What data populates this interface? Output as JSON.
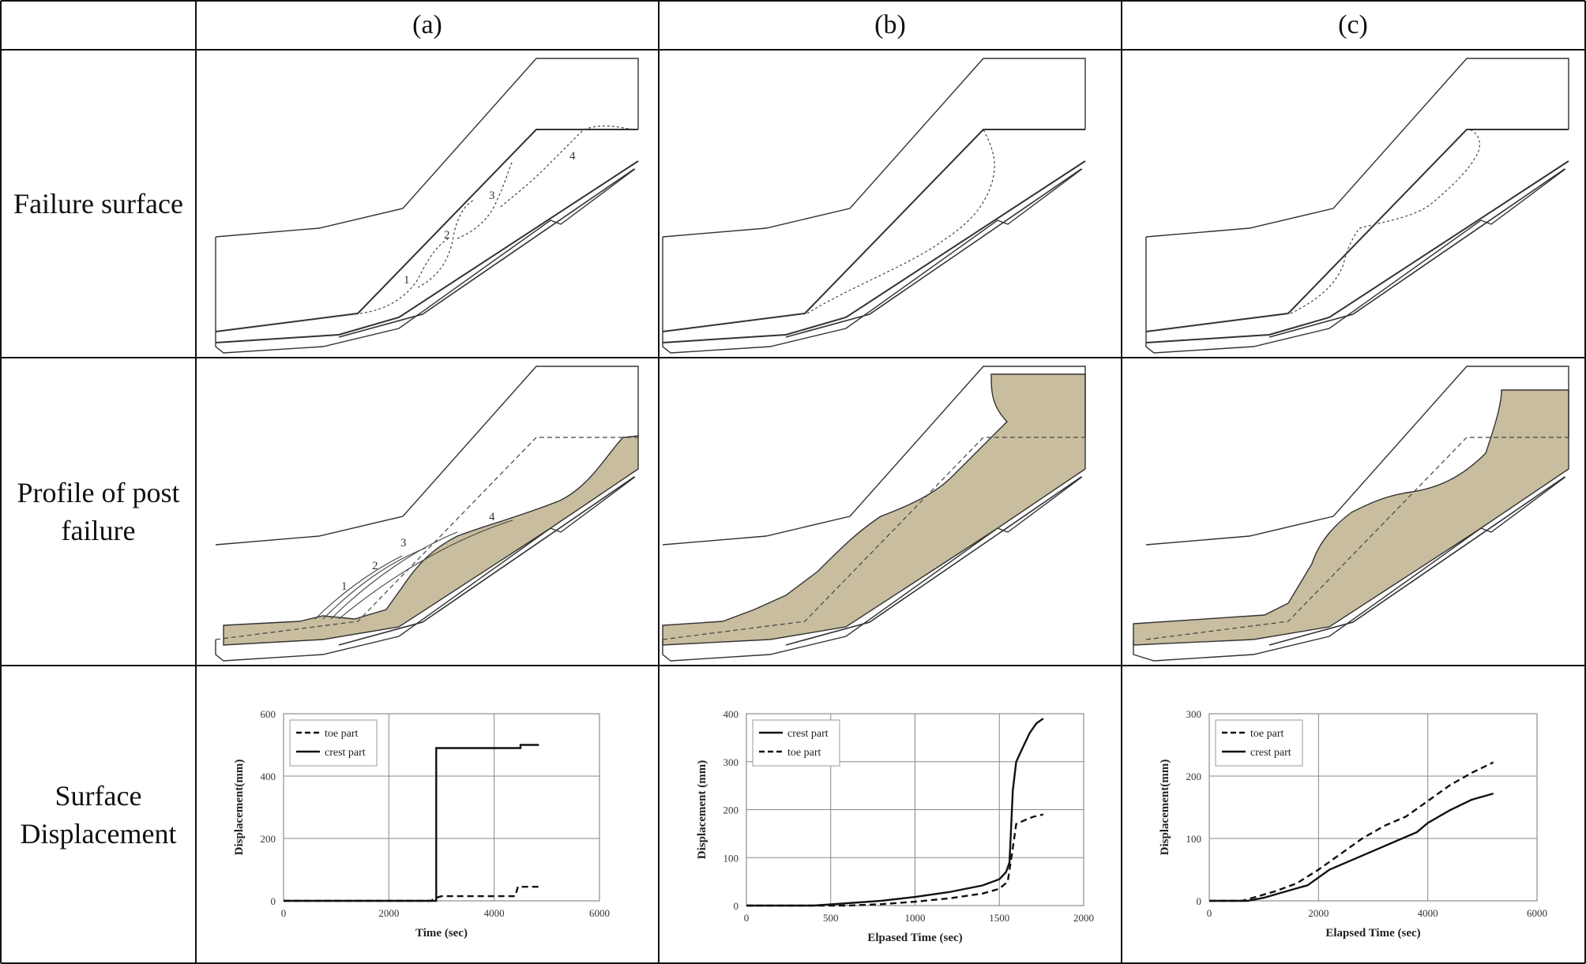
{
  "columns": [
    "(a)",
    "(b)",
    "(c)"
  ],
  "rows": {
    "failure": "Failure surface",
    "post": [
      "Profile of post",
      "failure"
    ],
    "disp": [
      "Surface",
      "Displacement"
    ]
  },
  "slice_labels": [
    "1",
    "2",
    "3",
    "4"
  ],
  "colors": {
    "soil_fill": "#c8bd9e",
    "line": "#222222",
    "grid": "#888888"
  },
  "chart_data": [
    {
      "type": "line",
      "xlabel": "Time (sec)",
      "ylabel": "Displacement(mm)",
      "xlim": [
        0,
        6000
      ],
      "ylim": [
        0,
        600
      ],
      "xticks": [
        "0",
        "2000",
        "4000",
        "6000"
      ],
      "yticks": [
        "0",
        "200",
        "400",
        "600"
      ],
      "legend_position": "top-left",
      "series": [
        {
          "name": "toe part",
          "style": "dashed",
          "points": [
            [
              0,
              0
            ],
            [
              2800,
              0
            ],
            [
              2900,
              10
            ],
            [
              3000,
              15
            ],
            [
              4400,
              15
            ],
            [
              4450,
              45
            ],
            [
              4850,
              45
            ]
          ]
        },
        {
          "name": "crest part",
          "style": "solid",
          "points": [
            [
              0,
              0
            ],
            [
              2900,
              0
            ],
            [
              2900,
              490
            ],
            [
              4500,
              490
            ],
            [
              4500,
              500
            ],
            [
              4850,
              500
            ]
          ]
        }
      ]
    },
    {
      "type": "line",
      "xlabel": "Elpased Time (sec)",
      "ylabel": "Displacement (mm)",
      "xlim": [
        0,
        2000
      ],
      "ylim": [
        0,
        400
      ],
      "xticks": [
        "0",
        "500",
        "1000",
        "1500",
        "2000"
      ],
      "yticks": [
        "0",
        "100",
        "200",
        "300",
        "400"
      ],
      "legend_position": "top-left",
      "series": [
        {
          "name": "crest part",
          "style": "solid",
          "points": [
            [
              0,
              0
            ],
            [
              400,
              0
            ],
            [
              600,
              5
            ],
            [
              800,
              10
            ],
            [
              1000,
              18
            ],
            [
              1200,
              28
            ],
            [
              1400,
              42
            ],
            [
              1500,
              55
            ],
            [
              1540,
              70
            ],
            [
              1560,
              90
            ],
            [
              1580,
              240
            ],
            [
              1600,
              300
            ],
            [
              1640,
              330
            ],
            [
              1680,
              360
            ],
            [
              1720,
              380
            ],
            [
              1760,
              390
            ]
          ]
        },
        {
          "name": "toe part",
          "style": "dashed",
          "points": [
            [
              0,
              0
            ],
            [
              600,
              0
            ],
            [
              800,
              3
            ],
            [
              1000,
              8
            ],
            [
              1200,
              15
            ],
            [
              1400,
              25
            ],
            [
              1500,
              35
            ],
            [
              1550,
              50
            ],
            [
              1580,
              120
            ],
            [
              1600,
              170
            ],
            [
              1650,
              178
            ],
            [
              1700,
              185
            ],
            [
              1760,
              190
            ]
          ]
        }
      ]
    },
    {
      "type": "line",
      "xlabel": "Elapsed Time (sec)",
      "ylabel": "Displacement(mm)",
      "xlim": [
        0,
        6000
      ],
      "ylim": [
        0,
        300
      ],
      "xticks": [
        "0",
        "2000",
        "4000",
        "6000"
      ],
      "yticks": [
        "0",
        "100",
        "200",
        "300"
      ],
      "legend_position": "top-left",
      "series": [
        {
          "name": "toe part",
          "style": "dashed",
          "points": [
            [
              0,
              0
            ],
            [
              600,
              0
            ],
            [
              800,
              5
            ],
            [
              1200,
              15
            ],
            [
              1600,
              28
            ],
            [
              2000,
              50
            ],
            [
              2400,
              75
            ],
            [
              2800,
              100
            ],
            [
              3200,
              120
            ],
            [
              3600,
              135
            ],
            [
              4000,
              160
            ],
            [
              4400,
              185
            ],
            [
              4800,
              205
            ],
            [
              5200,
              222
            ]
          ]
        },
        {
          "name": "crest part",
          "style": "solid",
          "points": [
            [
              0,
              0
            ],
            [
              700,
              0
            ],
            [
              1000,
              5
            ],
            [
              1400,
              15
            ],
            [
              1800,
              25
            ],
            [
              2200,
              50
            ],
            [
              2600,
              65
            ],
            [
              3000,
              80
            ],
            [
              3400,
              95
            ],
            [
              3800,
              110
            ],
            [
              4000,
              125
            ],
            [
              4400,
              145
            ],
            [
              4800,
              162
            ],
            [
              5200,
              172
            ]
          ]
        }
      ]
    }
  ]
}
